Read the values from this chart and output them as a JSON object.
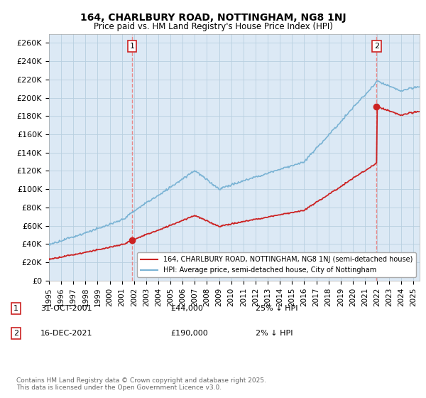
{
  "title": "164, CHARLBURY ROAD, NOTTINGHAM, NG8 1NJ",
  "subtitle": "Price paid vs. HM Land Registry's House Price Index (HPI)",
  "ylabel_ticks": [
    "£0",
    "£20K",
    "£40K",
    "£60K",
    "£80K",
    "£100K",
    "£120K",
    "£140K",
    "£160K",
    "£180K",
    "£200K",
    "£220K",
    "£240K",
    "£260K"
  ],
  "ytick_values": [
    0,
    20000,
    40000,
    60000,
    80000,
    100000,
    120000,
    140000,
    160000,
    180000,
    200000,
    220000,
    240000,
    260000
  ],
  "ylim": [
    0,
    270000
  ],
  "hpi_color": "#7ab3d4",
  "price_color": "#cc2222",
  "dashed_color": "#e88888",
  "plot_bg_color": "#dce9f5",
  "marker1_year": 2001.83,
  "marker1_price": 44000,
  "marker2_year": 2021.96,
  "marker2_price": 190000,
  "legend_line1": "164, CHARLBURY ROAD, NOTTINGHAM, NG8 1NJ (semi-detached house)",
  "legend_line2": "HPI: Average price, semi-detached house, City of Nottingham",
  "annotation1_label": "1",
  "annotation1_date": "31-OCT-2001",
  "annotation1_price": "£44,000",
  "annotation1_hpi": "25% ↓ HPI",
  "annotation2_label": "2",
  "annotation2_date": "16-DEC-2021",
  "annotation2_price": "£190,000",
  "annotation2_hpi": "2% ↓ HPI",
  "footer": "Contains HM Land Registry data © Crown copyright and database right 2025.\nThis data is licensed under the Open Government Licence v3.0.",
  "background_color": "#ffffff",
  "grid_color": "#b8cfe0"
}
